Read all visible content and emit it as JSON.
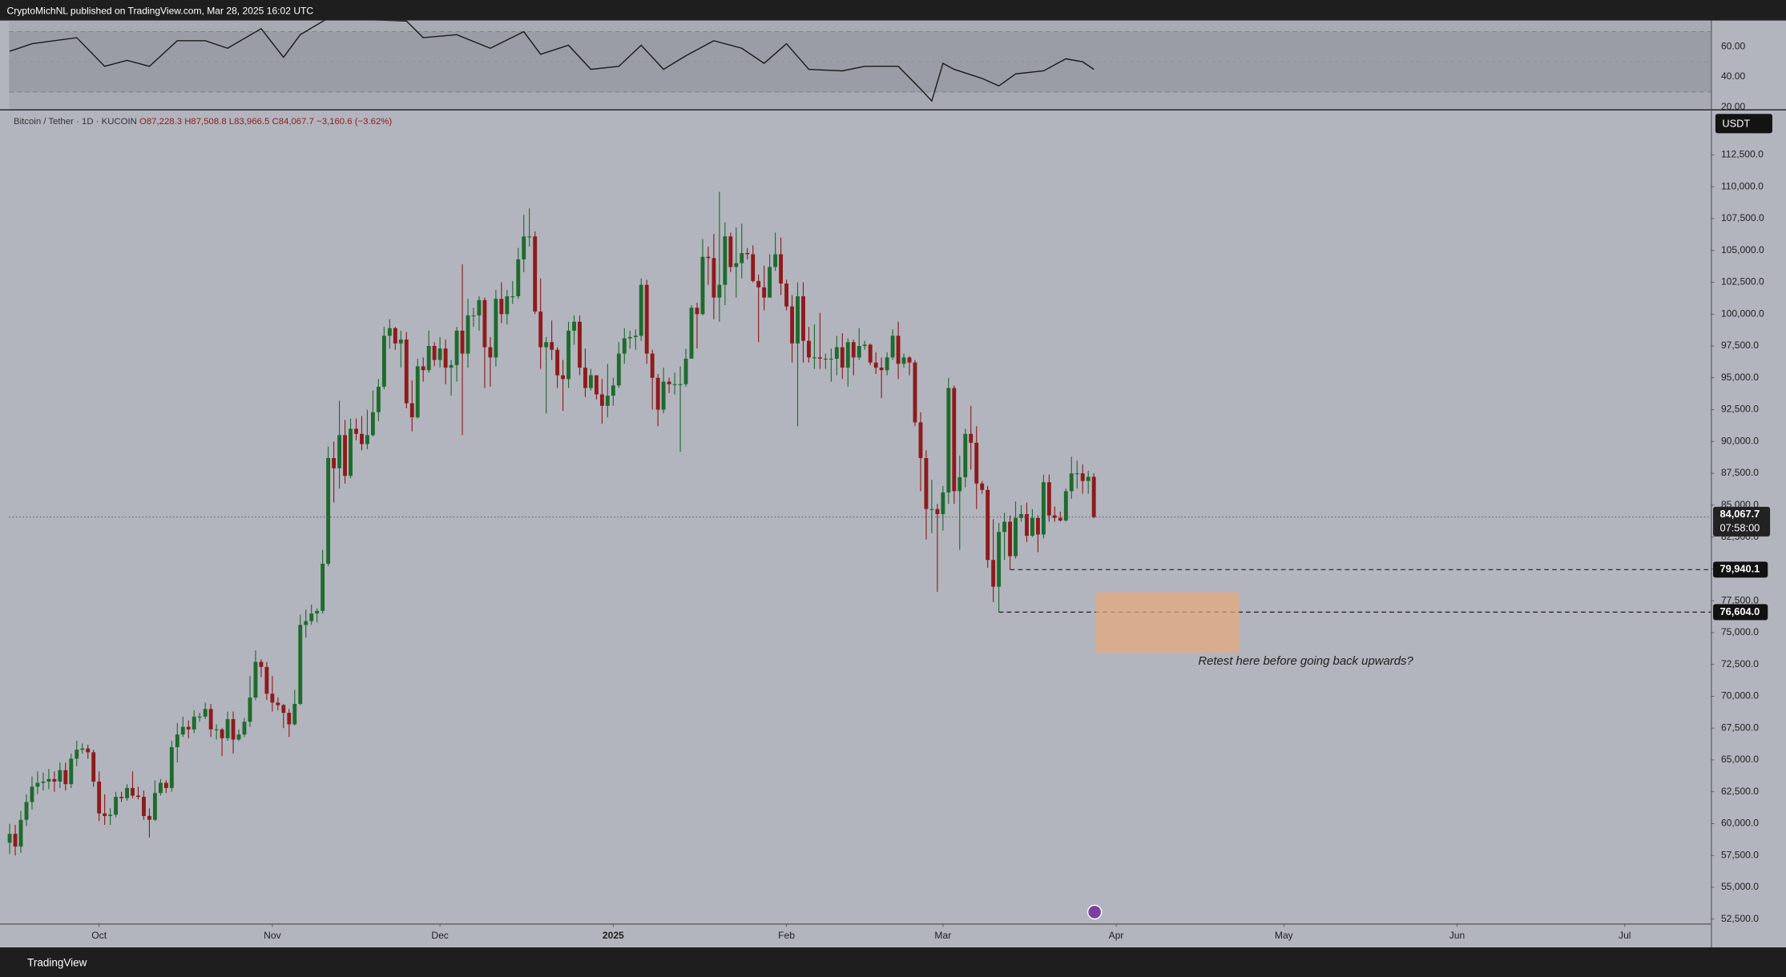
{
  "header": {
    "title": "CryptoMichNL published on TradingView.com, Mar 28, 2025 16:02 UTC"
  },
  "footer": {
    "brand": "TradingView"
  },
  "chart_data": [
    {
      "type": "line",
      "color": "#1a1a1a",
      "x": [
        0,
        4,
        12,
        17,
        21,
        25,
        30,
        35,
        39,
        45,
        49,
        52,
        57,
        71,
        74,
        80,
        86,
        92,
        95,
        100,
        104,
        109,
        113,
        117,
        121,
        126,
        131,
        135,
        139,
        143,
        149,
        153,
        159,
        163,
        165,
        167,
        169,
        174,
        177,
        180,
        185,
        189,
        192,
        194
      ],
      "values": [
        57,
        62,
        66,
        47,
        51,
        47,
        64,
        64,
        59,
        72,
        53,
        68,
        79,
        77,
        66,
        68,
        59,
        70,
        55,
        61,
        45,
        47,
        61,
        45,
        54,
        64,
        59,
        49,
        62,
        45,
        44,
        47,
        47,
        32,
        24,
        49,
        45,
        39,
        34,
        42,
        44,
        52,
        50,
        45
      ],
      "xlim": [
        -0.1,
        304.4
      ],
      "ylim": [
        18.5,
        77.4
      ],
      "yticks": [
        {
          "value": 60,
          "label": "60.00"
        },
        {
          "value": 40,
          "label": "40.00"
        },
        {
          "value": 20,
          "label": "20.00"
        }
      ],
      "band": [
        30,
        70
      ],
      "midline": 50
    },
    {
      "type": "candlestick",
      "currency": "USDT",
      "legend": {
        "symbol": "Bitcoin / Tether · 1D · KUCOIN",
        "open": "O87,228.3",
        "high": "H87,508.8",
        "low": "L83,966.5",
        "close": "C84,067.7",
        "change": "−3,160.6 (−3.62%)"
      },
      "up_color": "#1e6b2d",
      "down_color": "#8e1b1b",
      "open": [
        58500,
        59200,
        58200,
        60300,
        61700,
        62900,
        63200,
        63300,
        63500,
        63300,
        64200,
        63100,
        65100,
        65800,
        65900,
        65600,
        63300,
        60800,
        60600,
        60700,
        62100,
        62000,
        62800,
        62200,
        62100,
        60600,
        60300,
        62400,
        63200,
        62800,
        66000,
        67000,
        67600,
        67400,
        68400,
        68400,
        69000,
        67400,
        67400,
        66700,
        68200,
        66600,
        67000,
        68000,
        69900,
        72700,
        72300,
        70200,
        69500,
        69300,
        68700,
        67800,
        69400,
        75600,
        75900,
        76500,
        76700,
        80400,
        88700,
        87900,
        90500,
        87300,
        91000,
        90600,
        89800,
        90500,
        92300,
        94300,
        98300,
        98900,
        97700,
        98000,
        93000,
        91900,
        95900,
        95600,
        97500,
        96400,
        97300,
        95800,
        96000,
        98700,
        96900,
        99900,
        99900,
        101100,
        97400,
        96600,
        101200,
        100000,
        101400,
        101400,
        104300,
        106100,
        106100,
        100200,
        97400,
        97800,
        97200,
        95200,
        94900,
        98700,
        99400,
        95800,
        94200,
        95200,
        93700,
        92800,
        93600,
        94400,
        96900,
        98100,
        98200,
        98300,
        102300,
        96900,
        95000,
        92500,
        94700,
        94500,
        94500,
        94500,
        96500,
        100500,
        100000,
        104500,
        104400,
        101300,
        102300,
        106100,
        103700,
        104000,
        104800,
        104700,
        102600,
        102100,
        101300,
        103700,
        104700,
        102400,
        100600,
        97700,
        101400,
        97900,
        96600,
        96600,
        96500,
        96500,
        96500,
        97400,
        95800,
        97800,
        96600,
        97500,
        97600,
        96200,
        95800,
        95600,
        96600,
        98300,
        96100,
        96600,
        96200,
        91500,
        88700,
        84700,
        84700,
        84300,
        86000,
        94200,
        86100,
        87200,
        90600,
        89900,
        86700,
        86200,
        80700,
        78600,
        82900,
        83700,
        81000,
        84000,
        84300,
        82600,
        84000,
        82700,
        86800,
        84200,
        84000,
        83800,
        86100,
        87500,
        87500,
        86900,
        87228.3
      ],
      "high": [
        60000,
        59900,
        61000,
        62300,
        63700,
        64100,
        64000,
        64300,
        64100,
        64800,
        64800,
        65500,
        66500,
        66300,
        66200,
        65800,
        64100,
        62300,
        61200,
        62500,
        62500,
        63100,
        64100,
        62900,
        62600,
        61200,
        63400,
        63500,
        63400,
        66500,
        67900,
        68400,
        68100,
        68900,
        68700,
        69500,
        69400,
        67800,
        67500,
        68800,
        68800,
        67400,
        68300,
        71600,
        73600,
        72900,
        72700,
        71600,
        69900,
        69400,
        69000,
        70500,
        76400,
        76800,
        77200,
        76900,
        81500,
        89600,
        90000,
        93200,
        91700,
        91800,
        91800,
        92000,
        92500,
        94000,
        94900,
        99000,
        99600,
        99000,
        98700,
        98600,
        94800,
        96500,
        96600,
        98700,
        97800,
        98200,
        98000,
        96400,
        99000,
        103900,
        101200,
        100500,
        101400,
        101300,
        98200,
        101900,
        102500,
        101900,
        102600,
        105200,
        107800,
        108300,
        106500,
        102800,
        98200,
        99500,
        97400,
        96400,
        99400,
        99900,
        99900,
        97300,
        95700,
        95200,
        94900,
        96100,
        95000,
        97800,
        98900,
        98700,
        98800,
        102800,
        102700,
        97200,
        95300,
        95800,
        95000,
        95400,
        95900,
        97300,
        100700,
        100900,
        105900,
        105300,
        106300,
        109600,
        107200,
        106400,
        106800,
        107100,
        105200,
        105400,
        103100,
        103800,
        104700,
        106400,
        106000,
        102700,
        101500,
        102500,
        102500,
        99000,
        99200,
        100100,
        96900,
        97300,
        98300,
        98500,
        98100,
        98000,
        98900,
        97900,
        97700,
        97000,
        96600,
        97000,
        98800,
        99400,
        96900,
        96700,
        96400,
        92300,
        89300,
        87000,
        85100,
        86500,
        95000,
        94400,
        88900,
        91000,
        92800,
        91200,
        86900,
        86500,
        83900,
        83600,
        84400,
        84200,
        85300,
        85000,
        85200,
        84700,
        84200,
        87400,
        87400,
        84900,
        84500,
        86300,
        88800,
        88500,
        88200,
        87700,
        87508.8
      ],
      "low": [
        57600,
        57500,
        57700,
        59800,
        61100,
        62300,
        62600,
        62700,
        62500,
        62800,
        62600,
        62800,
        64500,
        65500,
        65100,
        62900,
        60200,
        59900,
        59900,
        60500,
        61700,
        61800,
        62000,
        61900,
        60300,
        58900,
        60200,
        62200,
        62400,
        62500,
        64800,
        66800,
        66700,
        67100,
        68000,
        68200,
        66800,
        66600,
        65300,
        66500,
        65500,
        66500,
        66800,
        67600,
        69700,
        71500,
        69700,
        68800,
        68900,
        67500,
        66800,
        67700,
        69300,
        74600,
        75600,
        75800,
        76500,
        80200,
        85200,
        86300,
        86700,
        87100,
        90100,
        89300,
        89400,
        90400,
        91600,
        94100,
        97300,
        97200,
        95800,
        92600,
        90800,
        91800,
        94700,
        95400,
        95900,
        95800,
        94500,
        93600,
        94700,
        90500,
        95800,
        99000,
        98700,
        94200,
        94300,
        95900,
        99300,
        99200,
        100800,
        101200,
        103300,
        105300,
        100000,
        95700,
        92200,
        96400,
        94200,
        92400,
        94200,
        97600,
        95200,
        93500,
        94000,
        93300,
        91400,
        91900,
        92800,
        94200,
        96100,
        97300,
        97200,
        97900,
        96100,
        92500,
        91200,
        92200,
        93800,
        93700,
        89200,
        94300,
        96500,
        97300,
        99900,
        102300,
        99600,
        99400,
        100700,
        103300,
        101300,
        102800,
        104300,
        102500,
        97800,
        100300,
        101300,
        103400,
        101500,
        100300,
        96200,
        91200,
        96200,
        96200,
        95700,
        95700,
        95700,
        94700,
        95200,
        94900,
        94300,
        95200,
        96400,
        97200,
        96000,
        95300,
        93400,
        95200,
        96400,
        94900,
        95800,
        95200,
        91200,
        86100,
        82300,
        82800,
        78200,
        83000,
        85100,
        85100,
        81500,
        86400,
        87800,
        84700,
        85900,
        80100,
        77400,
        76604,
        80700,
        79940.1,
        80800,
        83700,
        82100,
        82500,
        81300,
        82400,
        83700,
        83700,
        83700,
        83700,
        85500,
        86300,
        85900,
        85900,
        83966.5
      ],
      "close": [
        59200,
        58200,
        60300,
        61700,
        62900,
        63200,
        63300,
        63500,
        63300,
        64200,
        63100,
        65100,
        65800,
        65900,
        65600,
        63300,
        60800,
        60600,
        60700,
        62100,
        62000,
        62800,
        62200,
        62100,
        60600,
        60300,
        62400,
        63200,
        62800,
        66000,
        67000,
        67600,
        67400,
        68400,
        68400,
        69000,
        67400,
        67400,
        66700,
        68200,
        66600,
        67000,
        68000,
        69900,
        72700,
        72300,
        70200,
        69500,
        69300,
        68700,
        67800,
        69400,
        75600,
        75900,
        76500,
        76700,
        80400,
        88700,
        87900,
        90500,
        87300,
        91000,
        90600,
        89800,
        90500,
        92300,
        94300,
        98300,
        98900,
        97700,
        98000,
        93000,
        91900,
        95900,
        95600,
        97500,
        96400,
        97300,
        95800,
        96000,
        98700,
        96900,
        99900,
        99900,
        101100,
        97400,
        96600,
        101200,
        100000,
        101400,
        101400,
        104300,
        106100,
        106100,
        100200,
        97400,
        97800,
        97200,
        95200,
        94900,
        98700,
        99400,
        95800,
        94200,
        95200,
        93700,
        92800,
        93600,
        94400,
        96900,
        98100,
        98200,
        98300,
        102300,
        96900,
        95000,
        92500,
        94700,
        94500,
        94500,
        94500,
        96500,
        100500,
        100000,
        104500,
        104400,
        101300,
        102300,
        106100,
        103700,
        104000,
        104800,
        104700,
        102600,
        102100,
        101300,
        103700,
        104700,
        102400,
        100600,
        97700,
        101400,
        97900,
        96600,
        96600,
        96500,
        96500,
        96500,
        97400,
        95800,
        97800,
        96600,
        97500,
        97600,
        96200,
        95800,
        95600,
        96600,
        98300,
        96100,
        96600,
        96200,
        91500,
        88700,
        84700,
        84700,
        84300,
        86000,
        94200,
        86100,
        87200,
        90600,
        89900,
        86700,
        86200,
        80700,
        78600,
        82900,
        83700,
        81000,
        84000,
        84300,
        82600,
        84000,
        82700,
        86800,
        84200,
        84000,
        83800,
        86100,
        87500,
        87500,
        86900,
        87228.3,
        84067.7
      ],
      "xlim": [
        -0.1,
        304.4
      ],
      "ylim": [
        52160,
        115990
      ],
      "xticks": [
        {
          "value": 16,
          "label": "Oct"
        },
        {
          "value": 47,
          "label": "Nov"
        },
        {
          "value": 77,
          "label": "Dec"
        },
        {
          "value": 108,
          "label": "2025"
        },
        {
          "value": 139,
          "label": "Feb"
        },
        {
          "value": 167,
          "label": "Mar"
        },
        {
          "value": 198,
          "label": "Apr"
        },
        {
          "value": 228,
          "label": "May"
        },
        {
          "value": 259,
          "label": "Jun"
        },
        {
          "value": 289,
          "label": "Jul"
        }
      ],
      "yticks": [
        {
          "value": 52500,
          "label": "52,500.0"
        },
        {
          "value": 55000,
          "label": "55,000.0"
        },
        {
          "value": 57500,
          "label": "57,500.0"
        },
        {
          "value": 60000,
          "label": "60,000.0"
        },
        {
          "value": 62500,
          "label": "62,500.0"
        },
        {
          "value": 65000,
          "label": "65,000.0"
        },
        {
          "value": 67500,
          "label": "67,500.0"
        },
        {
          "value": 70000,
          "label": "70,000.0"
        },
        {
          "value": 72500,
          "label": "72,500.0"
        },
        {
          "value": 75000,
          "label": "75,000.0"
        },
        {
          "value": 77500,
          "label": "77,500.0"
        },
        {
          "value": 80000,
          "label": "80,000.0"
        },
        {
          "value": 82500,
          "label": "82,500.0"
        },
        {
          "value": 85000,
          "label": "85,000.0"
        },
        {
          "value": 87500,
          "label": "87,500.0"
        },
        {
          "value": 90000,
          "label": "90,000.0"
        },
        {
          "value": 92500,
          "label": "92,500.0"
        },
        {
          "value": 95000,
          "label": "95,000.0"
        },
        {
          "value": 97500,
          "label": "97,500.0"
        },
        {
          "value": 100000,
          "label": "100,000.0"
        },
        {
          "value": 102500,
          "label": "102,500.0"
        },
        {
          "value": 105000,
          "label": "105,000.0"
        },
        {
          "value": 107500,
          "label": "107,500.0"
        },
        {
          "value": 110000,
          "label": "110,000.0"
        },
        {
          "value": 112500,
          "label": "112,500.0"
        }
      ],
      "last_price": {
        "value": 84067.7,
        "label": "84,067.7",
        "countdown": "07:58:00"
      },
      "levels": [
        {
          "value": 79940.1,
          "label": "79,940.1",
          "start": 179
        },
        {
          "value": 76604,
          "label": "76,604.0",
          "start": 177
        }
      ],
      "zone": {
        "x": [
          194.3,
          220
        ],
        "y": [
          73430,
          78170
        ]
      },
      "annotation": "Retest here before going back upwards?"
    }
  ]
}
